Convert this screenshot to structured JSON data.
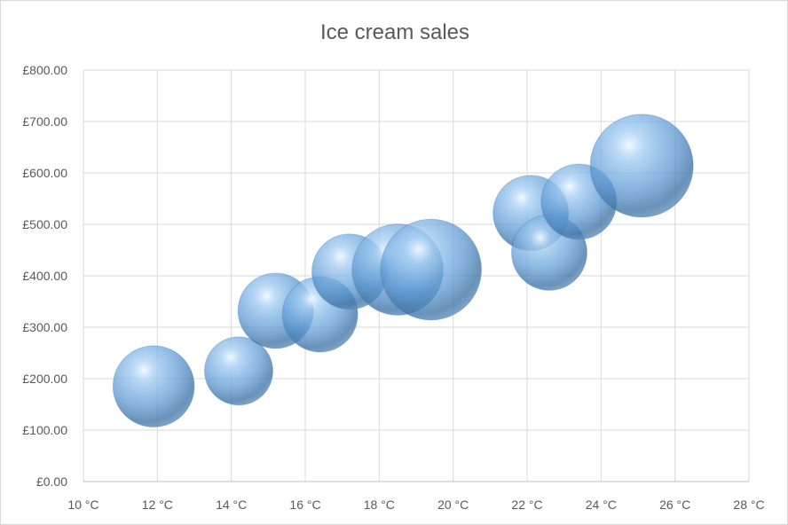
{
  "chart_data": {
    "type": "scatter",
    "subtype": "bubble",
    "title": "Ice cream sales",
    "xlabel": "",
    "ylabel": "",
    "xlim": [
      10,
      28
    ],
    "ylim": [
      0,
      800
    ],
    "x_ticks": [
      "10 °C",
      "12 °C",
      "14 °C",
      "16 °C",
      "18 °C",
      "20 °C",
      "22 °C",
      "24 °C",
      "26 °C",
      "28 °C"
    ],
    "y_ticks": [
      "£0.00",
      "£100.00",
      "£200.00",
      "£300.00",
      "£400.00",
      "£500.00",
      "£600.00",
      "£700.00",
      "£800.00"
    ],
    "grid": true,
    "legend": "none",
    "bubble_color": "#5b9bd5",
    "series": [
      {
        "points": [
          {
            "x": 11.9,
            "y": 185,
            "size": 0.78
          },
          {
            "x": 14.2,
            "y": 215,
            "size": 0.55
          },
          {
            "x": 15.2,
            "y": 332,
            "size": 0.67
          },
          {
            "x": 16.4,
            "y": 325,
            "size": 0.67
          },
          {
            "x": 17.2,
            "y": 408,
            "size": 0.67
          },
          {
            "x": 18.5,
            "y": 412,
            "size": 0.98
          },
          {
            "x": 19.4,
            "y": 412,
            "size": 1.2
          },
          {
            "x": 22.1,
            "y": 522,
            "size": 0.67
          },
          {
            "x": 22.6,
            "y": 445,
            "size": 0.67
          },
          {
            "x": 23.4,
            "y": 544,
            "size": 0.67
          },
          {
            "x": 25.1,
            "y": 614,
            "size": 1.25
          }
        ]
      }
    ]
  }
}
